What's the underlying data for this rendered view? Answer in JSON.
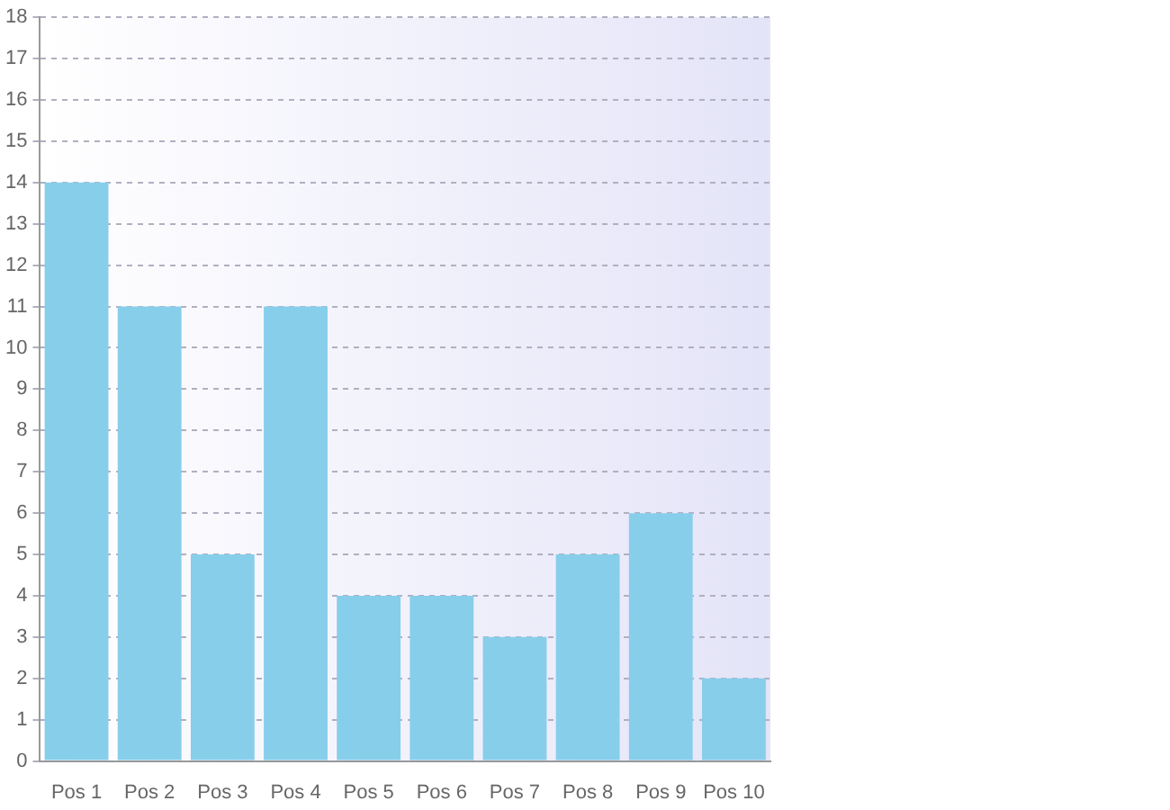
{
  "chart_data": {
    "type": "bar",
    "categories": [
      "Pos 1",
      "Pos 2",
      "Pos 3",
      "Pos 4",
      "Pos 5",
      "Pos 6",
      "Pos 7",
      "Pos 8",
      "Pos 9",
      "Pos 10"
    ],
    "values": [
      14,
      11,
      5,
      11,
      4,
      4,
      3,
      5,
      6,
      2
    ],
    "color": "#87ceeb",
    "ylim": [
      0,
      18
    ],
    "yticks": [
      0,
      1,
      2,
      3,
      4,
      5,
      6,
      7,
      8,
      9,
      10,
      11,
      12,
      13,
      14,
      15,
      16,
      17,
      18
    ],
    "grid": "y"
  }
}
